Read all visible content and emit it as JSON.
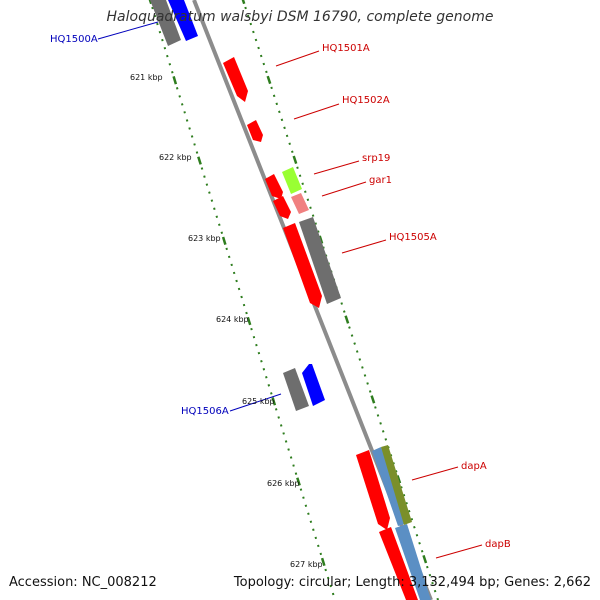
{
  "title": "Haloquadratum walsbyi DSM 16790, complete genome",
  "footer": {
    "accession": "Accession: NC_008212",
    "summary": "Topology: circular; Length: 3,132,494 bp; Genes: 2,662"
  },
  "colors": {
    "backbone": "#8c8c8c",
    "tick": "#2e7d1e",
    "label_forward": "#cc0000",
    "label_reverse": "#0000bb",
    "gene_red": "#ff0000",
    "gene_blue": "#0000ff",
    "gene_gray": "#6e6e6e",
    "gene_green": "#99ff33",
    "gene_pink": "#f08080",
    "gene_olive": "#7a8f2a",
    "gene_steel": "#5b8fc4"
  },
  "ticks": [
    "621 kbp",
    "622 kbp",
    "623 kbp",
    "624 kbp",
    "625 kbp",
    "626 kbp",
    "627 kbp"
  ],
  "gene_labels": [
    {
      "text": "HQ1500A",
      "strand": "reverse"
    },
    {
      "text": "HQ1501A",
      "strand": "forward"
    },
    {
      "text": "HQ1502A",
      "strand": "forward"
    },
    {
      "text": "srp19",
      "strand": "forward"
    },
    {
      "text": "gar1",
      "strand": "forward"
    },
    {
      "text": "HQ1505A",
      "strand": "forward"
    },
    {
      "text": "HQ1506A",
      "strand": "reverse"
    },
    {
      "text": "dapA",
      "strand": "forward"
    },
    {
      "text": "dapB",
      "strand": "forward"
    }
  ]
}
